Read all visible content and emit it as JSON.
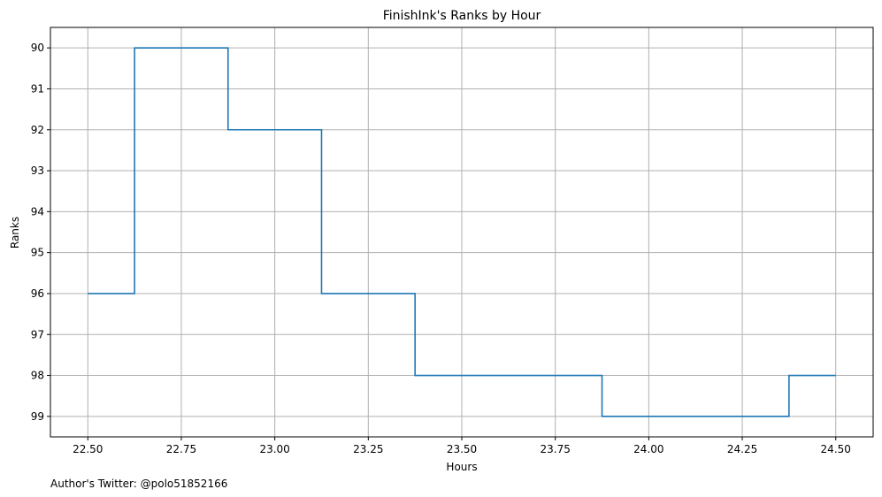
{
  "chart_data": {
    "type": "line",
    "step": "post",
    "title": "FinishInk's Ranks by Hour",
    "xlabel": "Hours",
    "ylabel": "Ranks",
    "xlim": [
      22.4,
      24.6
    ],
    "ylim": [
      99.5,
      89.5
    ],
    "y_inverted": true,
    "xticks": [
      22.5,
      22.75,
      23.0,
      23.25,
      23.5,
      23.75,
      24.0,
      24.25,
      24.5
    ],
    "xtick_labels": [
      "22.50",
      "22.75",
      "23.00",
      "23.25",
      "23.50",
      "23.75",
      "24.00",
      "24.25",
      "24.50"
    ],
    "yticks": [
      90,
      91,
      92,
      93,
      94,
      95,
      96,
      97,
      98,
      99
    ],
    "ytick_labels": [
      "90",
      "91",
      "92",
      "93",
      "94",
      "95",
      "96",
      "97",
      "98",
      "99"
    ],
    "grid": true,
    "series": [
      {
        "color": "#1f77b4",
        "x": [
          22.5,
          22.625,
          22.875,
          23.125,
          23.375,
          23.875,
          24.375,
          24.5
        ],
        "y": [
          96,
          90,
          92,
          96,
          98,
          99,
          98,
          98
        ]
      }
    ]
  },
  "footnote": "Author's Twitter: @polo51852166"
}
